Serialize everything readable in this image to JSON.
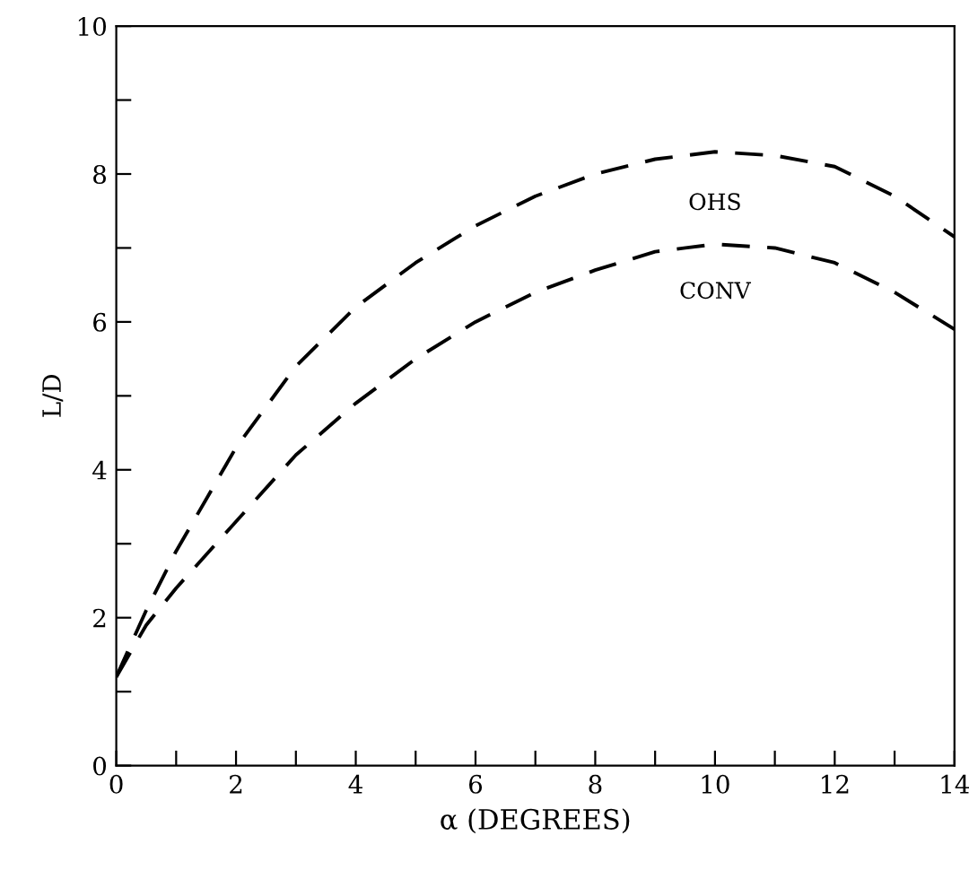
{
  "chart_data": {
    "type": "line",
    "xlabel": "α (DEGREES)",
    "ylabel": "L/D",
    "xlim": [
      0,
      14
    ],
    "ylim": [
      0,
      10
    ],
    "xticks": [
      0,
      {
        "value": 1,
        "label": null
      },
      2,
      {
        "value": 3,
        "label": null
      },
      4,
      {
        "value": 5,
        "label": null
      },
      6,
      {
        "value": 7,
        "label": null
      },
      8,
      {
        "value": 9,
        "label": null
      },
      10,
      {
        "value": 11,
        "label": null
      },
      12,
      {
        "value": 13,
        "label": null
      },
      14
    ],
    "yticks": [
      0,
      {
        "value": 1,
        "label": null
      },
      2,
      {
        "value": 3,
        "label": null
      },
      4,
      {
        "value": 5,
        "label": null
      },
      6,
      {
        "value": 7,
        "label": null
      },
      8,
      {
        "value": 9,
        "label": null
      },
      10
    ],
    "grid": false,
    "legend": false,
    "line_style": "dashed",
    "marker": "none",
    "series": [
      {
        "name": "OHS",
        "color": "#000000",
        "x": [
          0,
          0.5,
          1,
          2,
          3,
          4,
          5,
          6,
          7,
          8,
          9,
          10,
          11,
          12,
          13,
          14
        ],
        "values": [
          1.2,
          2.1,
          2.9,
          4.3,
          5.4,
          6.2,
          6.8,
          7.3,
          7.7,
          8.0,
          8.2,
          8.3,
          8.25,
          8.1,
          7.7,
          7.15
        ]
      },
      {
        "name": "CONV",
        "color": "#000000",
        "x": [
          0,
          0.5,
          1,
          2,
          3,
          4,
          5,
          6,
          7,
          8,
          9,
          10,
          11,
          12,
          13,
          14
        ],
        "values": [
          1.2,
          1.9,
          2.4,
          3.3,
          4.2,
          4.9,
          5.5,
          6.0,
          6.4,
          6.7,
          6.95,
          7.05,
          7.0,
          6.8,
          6.4,
          5.9
        ]
      }
    ]
  }
}
